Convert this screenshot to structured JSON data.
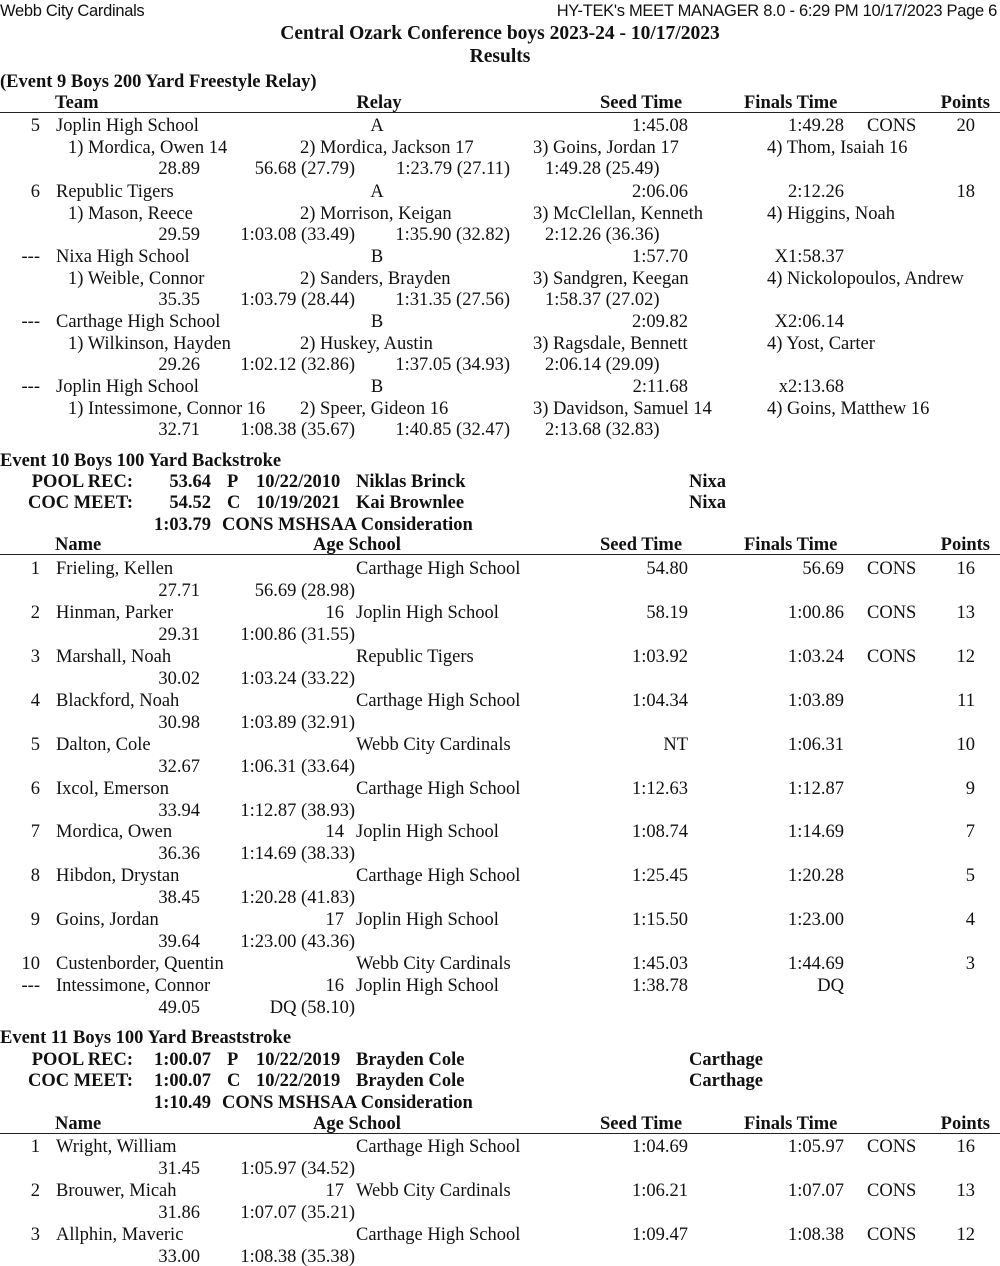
{
  "header": {
    "team": "Webb City Cardinals",
    "software": "HY-TEK's MEET MANAGER 8.0 - 6:29 PM  10/17/2023  Page 6",
    "title": "Central Ozark Conference boys 2023-24 - 10/17/2023",
    "subtitle": "Results"
  },
  "events": [
    {
      "title": "(Event 9  Boys 200 Yard Freestyle Relay)",
      "columns": {
        "c1": "Team",
        "c2": "Relay",
        "seed": "Seed Time",
        "finals": "Finals Time",
        "points": "Points"
      },
      "entries": [
        {
          "place": "5",
          "team": "Joplin High School",
          "relay": "A",
          "seed": "1:45.08",
          "finals": "1:49.28",
          "flag": "CONS",
          "points": "20",
          "swimmers": [
            "1) Mordica, Owen 14",
            "2) Mordica, Jackson 17",
            "3) Goins, Jordan 17",
            "4) Thom, Isaiah 16"
          ],
          "splits": [
            "28.89",
            "56.68 (27.79)",
            "1:23.79 (27.11)",
            "1:49.28 (25.49)"
          ]
        },
        {
          "place": "6",
          "team": "Republic Tigers",
          "relay": "A",
          "seed": "2:06.06",
          "finals": "2:12.26",
          "flag": "",
          "points": "18",
          "swimmers": [
            "1) Mason, Reece",
            "2) Morrison, Keigan",
            "3) McClellan, Kenneth",
            "4) Higgins, Noah"
          ],
          "splits": [
            "29.59",
            "1:03.08 (33.49)",
            "1:35.90 (32.82)",
            "2:12.26 (36.36)"
          ]
        },
        {
          "place": "---",
          "team": "Nixa High School",
          "relay": "B",
          "seed": "1:57.70",
          "finals": "X1:58.37",
          "flag": "",
          "points": "",
          "swimmers": [
            "1) Weible, Connor",
            "2) Sanders, Brayden",
            "3) Sandgren, Keegan",
            "4) Nickolopoulos, Andrew"
          ],
          "splits": [
            "35.35",
            "1:03.79 (28.44)",
            "1:31.35 (27.56)",
            "1:58.37 (27.02)"
          ]
        },
        {
          "place": "---",
          "team": "Carthage High School",
          "relay": "B",
          "seed": "2:09.82",
          "finals": "X2:06.14",
          "flag": "",
          "points": "",
          "swimmers": [
            "1) Wilkinson, Hayden",
            "2) Huskey, Austin",
            "3) Ragsdale, Bennett",
            "4) Yost, Carter"
          ],
          "splits": [
            "29.26",
            "1:02.12 (32.86)",
            "1:37.05 (34.93)",
            "2:06.14 (29.09)"
          ]
        },
        {
          "place": "---",
          "team": "Joplin High School",
          "relay": "B",
          "seed": "2:11.68",
          "finals": "x2:13.68",
          "flag": "",
          "points": "",
          "swimmers": [
            "1) Intessimone, Connor 16",
            "2) Speer, Gideon 16",
            "3) Davidson, Samuel 14",
            "4) Goins, Matthew 16"
          ],
          "splits": [
            "32.71",
            "1:08.38 (35.67)",
            "1:40.85 (32.47)",
            "2:13.68 (32.83)"
          ]
        }
      ]
    },
    {
      "title": "Event 10  Boys 100 Yard Backstroke",
      "records": [
        {
          "label": "POOL REC:",
          "time": "53.64",
          "code": "P",
          "date": "10/22/2010",
          "name": "Niklas Brinck",
          "school": "Nixa"
        },
        {
          "label": "COC MEET:",
          "time": "54.52",
          "code": "C",
          "date": "10/19/2021",
          "name": "Kai Brownlee",
          "school": "Nixa"
        }
      ],
      "standard": {
        "time": "1:03.79",
        "text": "CONS MSHSAA Consideration"
      },
      "columns": {
        "c1": "Name",
        "c2": "Age  School",
        "seed": "Seed Time",
        "finals": "Finals Time",
        "points": "Points"
      },
      "entries": [
        {
          "place": "1",
          "name": "Frieling, Kellen",
          "age": "",
          "school": "Carthage High School",
          "seed": "54.80",
          "finals": "56.69",
          "flag": "CONS",
          "points": "16",
          "splits": [
            "27.71",
            "56.69 (28.98)"
          ]
        },
        {
          "place": "2",
          "name": "Hinman, Parker",
          "age": "16",
          "school": "Joplin High School",
          "seed": "58.19",
          "finals": "1:00.86",
          "flag": "CONS",
          "points": "13",
          "splits": [
            "29.31",
            "1:00.86 (31.55)"
          ]
        },
        {
          "place": "3",
          "name": "Marshall, Noah",
          "age": "",
          "school": "Republic Tigers",
          "seed": "1:03.92",
          "finals": "1:03.24",
          "flag": "CONS",
          "points": "12",
          "splits": [
            "30.02",
            "1:03.24 (33.22)"
          ]
        },
        {
          "place": "4",
          "name": "Blackford, Noah",
          "age": "",
          "school": "Carthage High School",
          "seed": "1:04.34",
          "finals": "1:03.89",
          "flag": "",
          "points": "11",
          "splits": [
            "30.98",
            "1:03.89 (32.91)"
          ]
        },
        {
          "place": "5",
          "name": "Dalton, Cole",
          "age": "",
          "school": "Webb City Cardinals",
          "seed": "NT",
          "finals": "1:06.31",
          "flag": "",
          "points": "10",
          "splits": [
            "32.67",
            "1:06.31 (33.64)"
          ]
        },
        {
          "place": "6",
          "name": "Ixcol, Emerson",
          "age": "",
          "school": "Carthage High School",
          "seed": "1:12.63",
          "finals": "1:12.87",
          "flag": "",
          "points": "9",
          "splits": [
            "33.94",
            "1:12.87 (38.93)"
          ]
        },
        {
          "place": "7",
          "name": "Mordica, Owen",
          "age": "14",
          "school": "Joplin High School",
          "seed": "1:08.74",
          "finals": "1:14.69",
          "flag": "",
          "points": "7",
          "splits": [
            "36.36",
            "1:14.69 (38.33)"
          ]
        },
        {
          "place": "8",
          "name": "Hibdon, Drystan",
          "age": "",
          "school": "Carthage High School",
          "seed": "1:25.45",
          "finals": "1:20.28",
          "flag": "",
          "points": "5",
          "splits": [
            "38.45",
            "1:20.28 (41.83)"
          ]
        },
        {
          "place": "9",
          "name": "Goins, Jordan",
          "age": "17",
          "school": "Joplin High School",
          "seed": "1:15.50",
          "finals": "1:23.00",
          "flag": "",
          "points": "4",
          "splits": [
            "39.64",
            "1:23.00 (43.36)"
          ]
        },
        {
          "place": "10",
          "name": "Custenborder, Quentin",
          "age": "",
          "school": "Webb City Cardinals",
          "seed": "1:45.03",
          "finals": "1:44.69",
          "flag": "",
          "points": "3",
          "splits": []
        },
        {
          "place": "---",
          "name": "Intessimone, Connor",
          "age": "16",
          "school": "Joplin High School",
          "seed": "1:38.78",
          "finals": "DQ",
          "flag": "",
          "points": "",
          "splits": [
            "49.05",
            "DQ (58.10)"
          ]
        }
      ]
    },
    {
      "title": "Event 11  Boys 100 Yard Breaststroke",
      "records": [
        {
          "label": "POOL REC:",
          "time": "1:00.07",
          "code": "P",
          "date": "10/22/2019",
          "name": "Brayden Cole",
          "school": "Carthage"
        },
        {
          "label": "COC MEET:",
          "time": "1:00.07",
          "code": "C",
          "date": "10/22/2019",
          "name": "Brayden Cole",
          "school": "Carthage"
        }
      ],
      "standard": {
        "time": "1:10.49",
        "text": "CONS MSHSAA Consideration"
      },
      "columns": {
        "c1": "Name",
        "c2": "Age  School",
        "seed": "Seed Time",
        "finals": "Finals Time",
        "points": "Points"
      },
      "entries": [
        {
          "place": "1",
          "name": "Wright, William",
          "age": "",
          "school": "Carthage High School",
          "seed": "1:04.69",
          "finals": "1:05.97",
          "flag": "CONS",
          "points": "16",
          "splits": [
            "31.45",
            "1:05.97 (34.52)"
          ]
        },
        {
          "place": "2",
          "name": "Brouwer, Micah",
          "age": "17",
          "school": "Webb City Cardinals",
          "seed": "1:06.21",
          "finals": "1:07.07",
          "flag": "CONS",
          "points": "13",
          "splits": [
            "31.86",
            "1:07.07 (35.21)"
          ]
        },
        {
          "place": "3",
          "name": "Allphin, Maveric",
          "age": "",
          "school": "Carthage High School",
          "seed": "1:09.47",
          "finals": "1:08.38",
          "flag": "CONS",
          "points": "12",
          "splits": [
            "33.00",
            "1:08.38 (35.38)"
          ]
        }
      ]
    }
  ]
}
